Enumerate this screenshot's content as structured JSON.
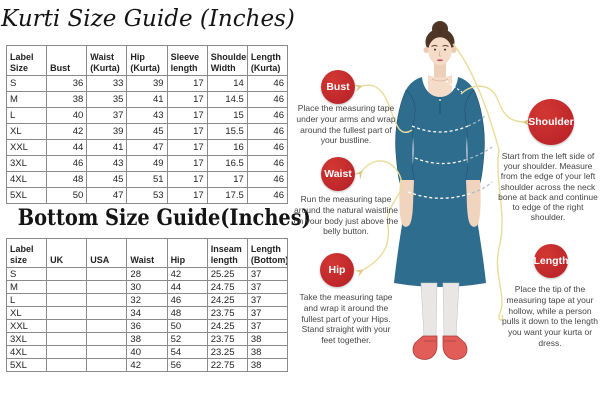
{
  "kurti_guide": {
    "title": "Kurti Size Guide (Inches)",
    "columns": [
      "Label Size",
      "Bust",
      "Waist (Kurta)",
      "Hip (Kurta)",
      "Sleeve length",
      "Shoulder Width",
      "Length (Kurta)"
    ],
    "rows": [
      [
        "S",
        "36",
        "33",
        "39",
        "17",
        "14",
        "46"
      ],
      [
        "M",
        "38",
        "35",
        "41",
        "17",
        "14.5",
        "46"
      ],
      [
        "L",
        "40",
        "37",
        "43",
        "17",
        "15",
        "46"
      ],
      [
        "XL",
        "42",
        "39",
        "45",
        "17",
        "15.5",
        "46"
      ],
      [
        "XXL",
        "44",
        "41",
        "47",
        "17",
        "16",
        "46"
      ],
      [
        "3XL",
        "46",
        "43",
        "49",
        "17",
        "16.5",
        "46"
      ],
      [
        "4XL",
        "48",
        "45",
        "51",
        "17",
        "17",
        "46"
      ],
      [
        "5XL",
        "50",
        "47",
        "53",
        "17",
        "17.5",
        "46"
      ]
    ]
  },
  "bottom_guide": {
    "title": "Bottom Size Guide(Inches)",
    "columns": [
      "Label size",
      "UK",
      "USA",
      "Waist",
      "Hip",
      "Inseam length",
      "Length (Bottom)"
    ],
    "rows": [
      [
        "S",
        "",
        "",
        "28",
        "42",
        "25.25",
        "37"
      ],
      [
        "M",
        "",
        "",
        "30",
        "44",
        "24.75",
        "37"
      ],
      [
        "L",
        "",
        "",
        "32",
        "46",
        "24.25",
        "37"
      ],
      [
        "XL",
        "",
        "",
        "34",
        "48",
        "23.75",
        "37"
      ],
      [
        "XXL",
        "",
        "",
        "36",
        "50",
        "24.25",
        "37"
      ],
      [
        "3XL",
        "",
        "",
        "38",
        "52",
        "23.75",
        "38"
      ],
      [
        "4XL",
        "",
        "",
        "40",
        "54",
        "23.25",
        "38"
      ],
      [
        "5XL",
        "",
        "",
        "42",
        "56",
        "22.75",
        "38"
      ]
    ]
  },
  "measurements": [
    {
      "label": "Bust",
      "text": "Place the measuring tape under your arms and wrap around the fullest part of your bustline."
    },
    {
      "label": "Waist",
      "text": "Run the measuring tape around the natural waistline on your body just above the belly button."
    },
    {
      "label": "Hip",
      "text": "Take the measuring tape and wrap it around the fullest part of your Hips. Stand straight with your feet together."
    },
    {
      "label": "Shoulder",
      "text": "Start from the left side of your shoulder. Measure from the edge of your left shoulder across the neck bone at back and continue to edge of the right shoulder."
    },
    {
      "label": "Length",
      "text": "Place the tip of the measuring tape at your hollow, while a person pulls it down to the length you want your kurta or dress."
    }
  ],
  "colors": {
    "badge_red": "#c1272d",
    "connector_yellow": "#e9dc9b",
    "kurti_teal": "#2f6d8e",
    "shoe_red": "#e25c58",
    "table_border": "#8a8a8a"
  }
}
